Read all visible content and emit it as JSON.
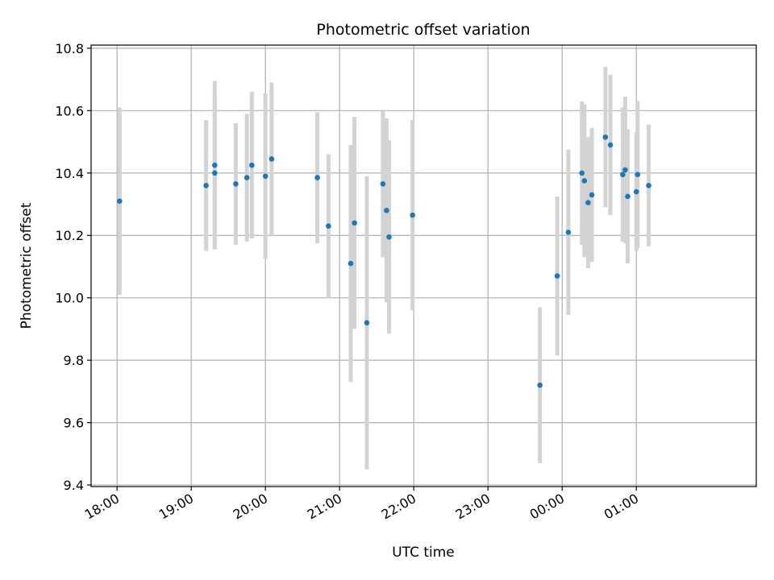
{
  "chart_data": {
    "type": "scatter",
    "title": "Photometric offset variation",
    "xlabel": "UTC time",
    "ylabel": "Photometric offset",
    "xlim": [
      "17:39",
      "02:37"
    ],
    "ylim": [
      9.395,
      10.81
    ],
    "x_ticks": [
      "18:00",
      "19:00",
      "20:00",
      "21:00",
      "22:00",
      "23:00",
      "00:00",
      "01:00"
    ],
    "y_ticks": [
      9.4,
      9.6,
      9.8,
      10.0,
      10.2,
      10.4,
      10.6,
      10.8
    ],
    "y_tick_labels": [
      "9.4",
      "9.6",
      "9.8",
      "10.0",
      "10.2",
      "10.4",
      "10.6",
      "10.8"
    ],
    "grid": true,
    "colors": {
      "marker": "#1f77b4",
      "errorbar": "#d3d3d3",
      "grid": "#b0b0b0"
    },
    "series": [
      {
        "points": [
          {
            "time": "18:02",
            "y": 10.31,
            "err": 0.3
          },
          {
            "time": "19:12",
            "y": 10.36,
            "err": 0.21
          },
          {
            "time": "19:19",
            "y": 10.425,
            "err": 0.27
          },
          {
            "time": "19:19",
            "y": 10.4,
            "err": 0.24
          },
          {
            "time": "19:36",
            "y": 10.365,
            "err": 0.195
          },
          {
            "time": "19:45",
            "y": 10.385,
            "err": 0.205
          },
          {
            "time": "19:49",
            "y": 10.425,
            "err": 0.235
          },
          {
            "time": "20:00",
            "y": 10.39,
            "err": 0.265
          },
          {
            "time": "20:05",
            "y": 10.445,
            "err": 0.245
          },
          {
            "time": "20:42",
            "y": 10.385,
            "err": 0.21
          },
          {
            "time": "20:51",
            "y": 10.23,
            "err": 0.23
          },
          {
            "time": "21:09",
            "y": 10.11,
            "err": 0.38
          },
          {
            "time": "21:12",
            "y": 10.24,
            "err": 0.34
          },
          {
            "time": "21:22",
            "y": 9.92,
            "err": 0.47
          },
          {
            "time": "21:35",
            "y": 10.365,
            "err": 0.235
          },
          {
            "time": "21:38",
            "y": 10.28,
            "err": 0.295
          },
          {
            "time": "21:40",
            "y": 10.195,
            "err": 0.31
          },
          {
            "time": "21:59",
            "y": 10.265,
            "err": 0.305
          },
          {
            "time": "23:42",
            "y": 9.72,
            "err": 0.25
          },
          {
            "time": "23:56",
            "y": 10.07,
            "err": 0.255
          },
          {
            "time": "00:05",
            "y": 10.21,
            "err": 0.265
          },
          {
            "time": "00:16",
            "y": 10.4,
            "err": 0.23
          },
          {
            "time": "00:18",
            "y": 10.375,
            "err": 0.245
          },
          {
            "time": "00:21",
            "y": 10.305,
            "err": 0.21
          },
          {
            "time": "00:24",
            "y": 10.33,
            "err": 0.215
          },
          {
            "time": "00:35",
            "y": 10.515,
            "err": 0.225
          },
          {
            "time": "00:39",
            "y": 10.49,
            "err": 0.225
          },
          {
            "time": "00:49",
            "y": 10.395,
            "err": 0.215
          },
          {
            "time": "00:51",
            "y": 10.41,
            "err": 0.235
          },
          {
            "time": "00:53",
            "y": 10.325,
            "err": 0.215
          },
          {
            "time": "01:00",
            "y": 10.34,
            "err": 0.19
          },
          {
            "time": "01:01",
            "y": 10.395,
            "err": 0.235
          },
          {
            "time": "01:10",
            "y": 10.36,
            "err": 0.195
          }
        ]
      }
    ]
  }
}
